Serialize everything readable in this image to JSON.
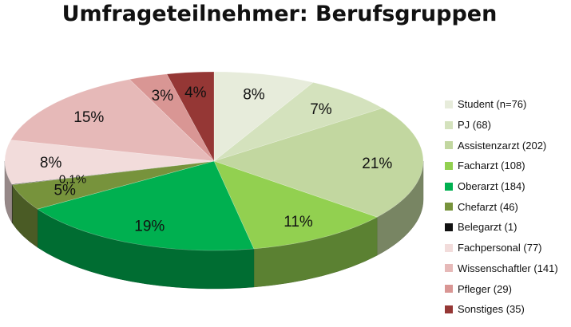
{
  "chart_data": {
    "type": "pie",
    "title": "Umfrageteilnehmer: Berufsgruppen",
    "legend_position": "right",
    "three_d": true,
    "slices": [
      {
        "label": "Student (n=76)",
        "value": 76,
        "percent_label": "8%",
        "color": "#e7ecdb"
      },
      {
        "label": "PJ (68)",
        "value": 68,
        "percent_label": "7%",
        "color": "#d4e2bd"
      },
      {
        "label": "Assistenzarzt (202)",
        "value": 202,
        "percent_label": "21%",
        "color": "#c2d7a0"
      },
      {
        "label": "Facharzt (108)",
        "value": 108,
        "percent_label": "11%",
        "color": "#92d050"
      },
      {
        "label": "Oberarzt (184)",
        "value": 184,
        "percent_label": "19%",
        "color": "#00b050"
      },
      {
        "label": "Chefarzt (46)",
        "value": 46,
        "percent_label": "5%",
        "color": "#77933c"
      },
      {
        "label": "Belegarzt (1)",
        "value": 1,
        "percent_label": "0,1%",
        "color": "#111111"
      },
      {
        "label": "Fachpersonal (77)",
        "value": 77,
        "percent_label": "8%",
        "color": "#f2dcdb"
      },
      {
        "label": "Wissenschaftler (141)",
        "value": 141,
        "percent_label": "15%",
        "color": "#e6b9b8"
      },
      {
        "label": "Pfleger (29)",
        "value": 29,
        "percent_label": "3%",
        "color": "#d99694"
      },
      {
        "label": "Sonstiges (35)",
        "value": 35,
        "percent_label": "4%",
        "color": "#953735"
      }
    ]
  }
}
